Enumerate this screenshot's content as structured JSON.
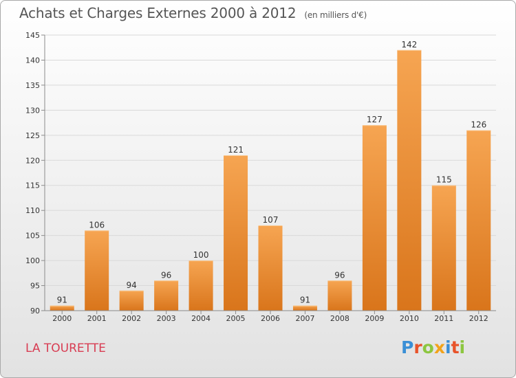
{
  "header": {
    "title": "Achats et Charges Externes 2000 à 2012",
    "unit": "(en milliers d'€)"
  },
  "footer": {
    "place": "LA TOURETTE",
    "logo": "Proxiti",
    "logo_colors": [
      "#3a8fd6",
      "#e8532a",
      "#8cc63f",
      "#f2a31b",
      "#3a8fd6",
      "#e8532a",
      "#8cc63f"
    ]
  },
  "colors": {
    "bar_light": "#f6a552",
    "bar_dark": "#d9751b",
    "grid": "#d9d9d9",
    "axis": "#8a8a8a"
  },
  "chart_data": {
    "type": "bar",
    "title": "Achats et Charges Externes 2000 à 2012",
    "subtitle": "(en milliers d'€)",
    "categories": [
      "2000",
      "2001",
      "2002",
      "2003",
      "2004",
      "2005",
      "2006",
      "2007",
      "2008",
      "2009",
      "2010",
      "2011",
      "2012"
    ],
    "values": [
      91,
      106,
      94,
      96,
      100,
      121,
      107,
      91,
      96,
      127,
      142,
      115,
      126
    ],
    "ylim": [
      90,
      145
    ],
    "yticks": [
      90,
      95,
      100,
      105,
      110,
      115,
      120,
      125,
      130,
      135,
      140,
      145
    ],
    "grid": true,
    "legend": "none",
    "xlabel": "",
    "ylabel": ""
  }
}
